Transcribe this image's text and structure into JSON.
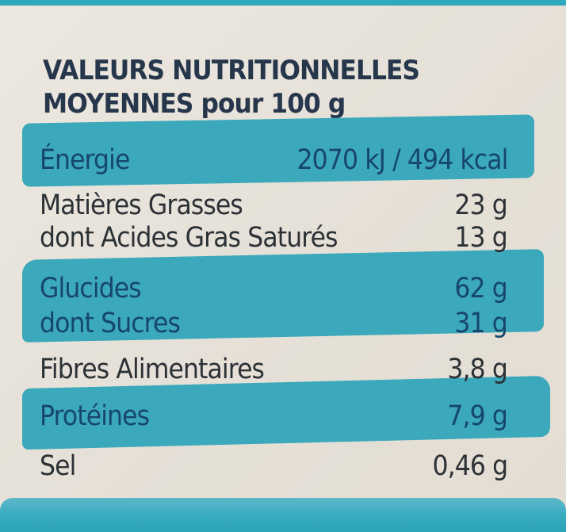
{
  "header": {
    "line1": "VALEURS NUTRITIONNELLES",
    "line2": "MOYENNES pour 100 g"
  },
  "rows": [
    {
      "label": "Énergie",
      "value": "2070 kJ / 494 kcal"
    },
    {
      "label": "Matières Grasses",
      "value": "23 g"
    },
    {
      "label": "dont Acides Gras Saturés",
      "value": "13 g"
    },
    {
      "label": "Glucides",
      "value": "62 g"
    },
    {
      "label": "dont Sucres",
      "value": "31 g"
    },
    {
      "label": "Fibres Alimentaires",
      "value": "3,8 g"
    },
    {
      "label": "Protéines",
      "value": "7,9 g"
    },
    {
      "label": "Sel",
      "value": "0,46 g"
    }
  ],
  "colors": {
    "accent_band": "#3ba9bb",
    "band_text": "#16476a",
    "body_text": "#2c3136",
    "background": "#e8e4dc"
  }
}
